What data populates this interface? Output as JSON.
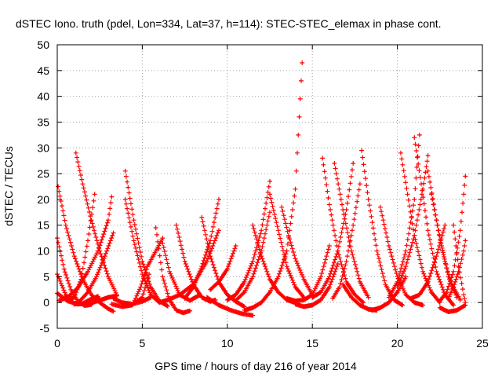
{
  "chart_data": {
    "type": "scatter",
    "title": "dSTEC Iono. truth (pdel, Lon=334, Lat=37, h=114): STEC-STEC_elemax in phase cont.",
    "xlabel": "GPS time / hours of day 216 of year 2014",
    "ylabel": "dSTEC  / TECUs",
    "xlim": [
      0,
      25
    ],
    "ylim": [
      -5,
      50
    ],
    "xticks": [
      0,
      5,
      10,
      15,
      20,
      25
    ],
    "yticks": [
      -5,
      0,
      5,
      10,
      15,
      20,
      25,
      30,
      35,
      40,
      45,
      50
    ],
    "grid": true,
    "marker": "plus",
    "color": "#ff0000",
    "series": [
      {
        "x": [
          0,
          0.4,
          0.8,
          1.2,
          1.6,
          2.0,
          2.4
        ],
        "y": [
          12.5,
          6.5,
          2.5,
          0.3,
          -0.6,
          -0.4,
          1.0
        ]
      },
      {
        "x": [
          0.05,
          0.5,
          1.0,
          1.5,
          2.0,
          2.5,
          3.0,
          3.3
        ],
        "y": [
          22.5,
          15,
          9,
          4.5,
          1.5,
          0,
          -1.2,
          -1.7
        ]
      },
      {
        "x": [
          0,
          0.5,
          1.0,
          1.5,
          2.0,
          2.4
        ],
        "y": [
          5.5,
          1.5,
          -0.3,
          -0.2,
          0.7,
          1.2
        ]
      },
      {
        "x": [
          0,
          0.6,
          1.2,
          1.8,
          2.4,
          3.0,
          3.5
        ],
        "y": [
          1.8,
          0.3,
          -0.3,
          -0.2,
          0.3,
          1.0,
          1.3
        ]
      },
      {
        "x": [
          0.1,
          0.6,
          1.2,
          1.8,
          2.4,
          3.0,
          3.2
        ],
        "y": [
          0.4,
          1.0,
          2.8,
          6.0,
          10,
          16,
          20.5
        ]
      },
      {
        "x": [
          1.1,
          1.5,
          2.0,
          2.5,
          3.0,
          3.5
        ],
        "y": [
          29,
          23,
          16,
          10,
          5,
          1.5
        ]
      },
      {
        "x": [
          0.6,
          1.0,
          1.4,
          1.8,
          2.2
        ],
        "y": [
          0.5,
          1.0,
          4.5,
          12,
          21
        ]
      },
      {
        "x": [
          1.3,
          1.8,
          2.3,
          2.8,
          3.3
        ],
        "y": [
          0.2,
          2,
          5,
          9,
          13.5
        ]
      },
      {
        "x": [
          4.0,
          4.5,
          5.0,
          5.5,
          6.0,
          6.5
        ],
        "y": [
          25.5,
          16,
          8,
          3,
          0.3,
          -0.7
        ]
      },
      {
        "x": [
          3.3,
          3.8,
          4.4,
          5.0,
          5.5
        ],
        "y": [
          0.8,
          0,
          -0.3,
          0.2,
          1.0
        ]
      },
      {
        "x": [
          4.0,
          4.5,
          5.0,
          5.5,
          6.0,
          6.5
        ],
        "y": [
          20,
          12,
          5.5,
          1.5,
          0,
          0.5
        ]
      },
      {
        "x": [
          3.2,
          3.8,
          4.4,
          5.0,
          5.4
        ],
        "y": [
          -0.3,
          -0.8,
          -0.5,
          1.0,
          5.5
        ]
      },
      {
        "x": [
          4.5,
          4.9,
          5.3,
          5.8,
          6.2
        ],
        "y": [
          0,
          3,
          7,
          10,
          12.5
        ]
      },
      {
        "x": [
          5.8,
          6.2,
          6.6,
          7.0,
          7.4,
          7.8
        ],
        "y": [
          14.5,
          5,
          0.5,
          -1.5,
          -2,
          -1.6
        ]
      },
      {
        "x": [
          6.2,
          6.6,
          7.2,
          7.8,
          8.4
        ],
        "y": [
          11.5,
          6,
          1.5,
          0.4,
          1.5
        ]
      },
      {
        "x": [
          7.0,
          7.5,
          8.0,
          8.5,
          9.0,
          9.3
        ],
        "y": [
          15,
          8,
          3.5,
          1,
          0.2,
          0.5
        ]
      },
      {
        "x": [
          6.5,
          7.2,
          8.0,
          8.8,
          9.5
        ],
        "y": [
          0.5,
          1.5,
          3.5,
          8,
          14
        ]
      },
      {
        "x": [
          7.5,
          8.0,
          8.5,
          9.0,
          9.5
        ],
        "y": [
          0.8,
          3,
          7,
          12,
          20
        ]
      },
      {
        "x": [
          8.5,
          9.0,
          9.5,
          10.0,
          10.5,
          11.0
        ],
        "y": [
          16.5,
          9,
          4,
          1.5,
          0.2,
          -0.8
        ]
      },
      {
        "x": [
          9.0,
          9.5,
          10.0,
          10.5
        ],
        "y": [
          2.5,
          4,
          6.5,
          11
        ]
      },
      {
        "x": [
          8.8,
          9.5,
          10.2,
          10.9,
          11.5
        ],
        "y": [
          1.0,
          -0.5,
          -1.5,
          -2.2,
          -2.5
        ]
      },
      {
        "x": [
          11.0,
          11.5,
          12.0,
          12.5,
          13.0,
          13.5,
          14.0,
          14.4
        ],
        "y": [
          -1.5,
          -1,
          0,
          2,
          5,
          10,
          22,
          46.5
        ]
      },
      {
        "x": [
          10.0,
          10.5,
          11.0,
          11.5,
          12.0,
          12.5
        ],
        "y": [
          0.5,
          1.5,
          4,
          8,
          14,
          23.5
        ]
      },
      {
        "x": [
          10.5,
          11.0,
          11.5,
          12.0,
          12.5
        ],
        "y": [
          0.4,
          2,
          5,
          10,
          17.5
        ]
      },
      {
        "x": [
          11.5,
          12.0,
          12.5,
          13.0,
          13.5,
          14.0
        ],
        "y": [
          15,
          9,
          4.5,
          2,
          0.5,
          0
        ]
      },
      {
        "x": [
          12.5,
          13.0,
          13.5,
          14.0,
          14.5
        ],
        "y": [
          21,
          14,
          7,
          3,
          1
        ]
      },
      {
        "x": [
          13.2,
          13.6,
          14.0,
          14.5,
          15.0
        ],
        "y": [
          18.5,
          13,
          8.5,
          4.5,
          1.5
        ]
      },
      {
        "x": [
          13.5,
          14.0,
          14.5,
          15.0,
          15.5,
          16.0
        ],
        "y": [
          0.8,
          0.3,
          0.5,
          1.5,
          5,
          11
        ]
      },
      {
        "x": [
          14.0,
          14.5,
          15.0,
          15.5,
          16.0,
          16.5
        ],
        "y": [
          -0.3,
          -0.8,
          -0.5,
          0.5,
          3,
          7.5
        ]
      },
      {
        "x": [
          15.6,
          16.0,
          16.5,
          17.0,
          17.5,
          18.0
        ],
        "y": [
          28,
          19,
          10,
          4,
          1.5,
          0
        ]
      },
      {
        "x": [
          16.3,
          16.8,
          17.3,
          17.8,
          18.3
        ],
        "y": [
          27,
          18,
          10,
          4,
          1
        ]
      },
      {
        "x": [
          15.0,
          15.5,
          16.0,
          16.5,
          17.0,
          17.4
        ],
        "y": [
          1,
          2,
          5,
          10,
          18,
          27
        ]
      },
      {
        "x": [
          16.2,
          16.6,
          17.0,
          17.4,
          17.8
        ],
        "y": [
          0.8,
          3,
          8,
          15,
          23
        ]
      },
      {
        "x": [
          17.9,
          18.3,
          18.8,
          19.3,
          19.8,
          20.3
        ],
        "y": [
          29.5,
          20,
          10,
          3.5,
          0.5,
          -0.5
        ]
      },
      {
        "x": [
          16.8,
          17.3,
          17.8,
          18.3,
          18.8
        ],
        "y": [
          3.5,
          1,
          -0.5,
          -1.3,
          -1.5
        ]
      },
      {
        "x": [
          18.5,
          19.0,
          19.5,
          20.0,
          20.5
        ],
        "y": [
          -1.5,
          -1,
          0,
          2,
          5
        ]
      },
      {
        "x": [
          19.0,
          19.5,
          20.0,
          20.5,
          21.0,
          21.5
        ],
        "y": [
          18.5,
          11,
          5,
          1.5,
          0,
          -0.5
        ]
      },
      {
        "x": [
          20.2,
          20.6,
          21.0,
          21.5,
          22.0,
          22.5
        ],
        "y": [
          29,
          21,
          13,
          6,
          2,
          0
        ]
      },
      {
        "x": [
          19.5,
          20.0,
          20.5,
          21.0,
          21.3
        ],
        "y": [
          1,
          4,
          10,
          20,
          32.5
        ]
      },
      {
        "x": [
          20.0,
          20.5,
          21.0,
          21.5,
          21.8
        ],
        "y": [
          3,
          7,
          13,
          22,
          28.5
        ]
      },
      {
        "x": [
          21.0,
          21.4,
          21.8,
          22.3,
          22.8,
          23.3
        ],
        "y": [
          32,
          23,
          14,
          6,
          1.5,
          -0.5
        ]
      },
      {
        "x": [
          21.8,
          22.2,
          22.6,
          23.0,
          23.5
        ],
        "y": [
          25.5,
          18,
          11,
          5,
          1
        ]
      },
      {
        "x": [
          20.8,
          21.3,
          21.8,
          22.3,
          22.8
        ],
        "y": [
          0.8,
          1.5,
          4,
          9,
          15
        ]
      },
      {
        "x": [
          22.0,
          22.4,
          22.8,
          23.2,
          23.7
        ],
        "y": [
          21,
          14,
          8,
          3.5,
          0.5
        ]
      },
      {
        "x": [
          22.5,
          22.9,
          23.3,
          23.7,
          24.0
        ],
        "y": [
          0.3,
          2,
          6,
          14,
          24.5
        ]
      },
      {
        "x": [
          23.0,
          23.3,
          23.6,
          23.9,
          24.0
        ],
        "y": [
          0.8,
          3,
          6,
          10,
          12
        ]
      },
      {
        "x": [
          23.3,
          23.6,
          23.9,
          24.0
        ],
        "y": [
          15,
          7,
          1.5,
          0
        ]
      },
      {
        "x": [
          22.5,
          23.0,
          23.5,
          24.0
        ],
        "y": [
          -1,
          -1.8,
          -1.5,
          -0.5
        ]
      }
    ]
  }
}
